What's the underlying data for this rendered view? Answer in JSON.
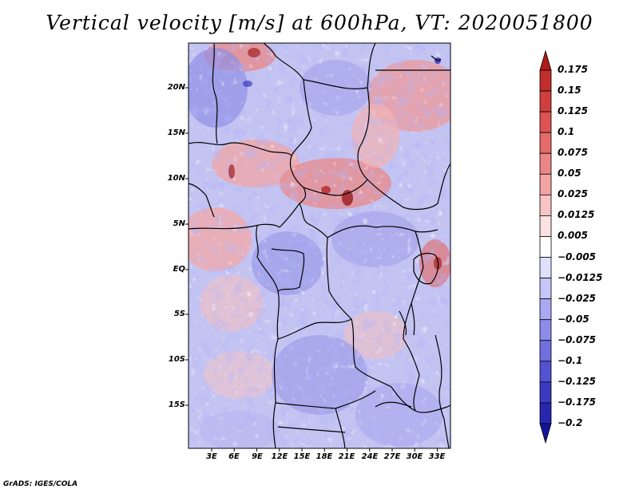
{
  "title": "Vertical velocity [m/s] at 600hPa, VT: 2020051800",
  "credit": "GrADS: IGES/COLA",
  "map": {
    "variable": "Vertical velocity",
    "units": "m/s",
    "level": "600hPa",
    "valid_time": "2020051800",
    "lat_labels": [
      "20N",
      "15N",
      "10N",
      "5N",
      "EQ",
      "5S",
      "10S",
      "15S"
    ],
    "lon_labels": [
      "3E",
      "6E",
      "9E",
      "12E",
      "15E",
      "18E",
      "21E",
      "24E",
      "27E",
      "30E",
      "33E"
    ]
  },
  "colorbar": {
    "levels": [
      "0.175",
      "0.15",
      "0.125",
      "0.1",
      "0.075",
      "0.05",
      "0.025",
      "0.0125",
      "0.005",
      "−0.005",
      "−0.0125",
      "−0.025",
      "−0.05",
      "−0.075",
      "−0.1",
      "−0.125",
      "−0.175",
      "−0.2"
    ],
    "colors": [
      "#b01a1a",
      "#c22d2d",
      "#d23e3e",
      "#de5252",
      "#e56a6a",
      "#ec8686",
      "#f3a3a3",
      "#f8c4c4",
      "#fbe1e1",
      "#ffffff",
      "#e0e0fb",
      "#c6c6f8",
      "#a9a9f3",
      "#8c8cea",
      "#6f6fdf",
      "#5252d2",
      "#3a3ac2",
      "#2626b0",
      "#15159c"
    ]
  }
}
